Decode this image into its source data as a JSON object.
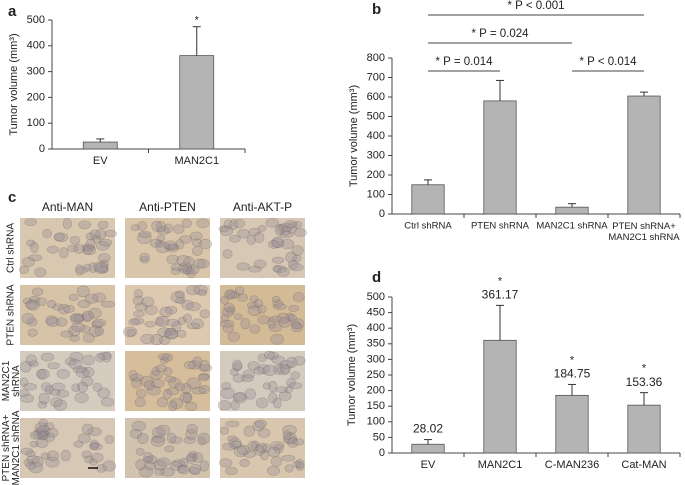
{
  "chart_data": [
    {
      "type": "bar",
      "panel": "a",
      "ylabel": "Tumor volume (mm³)",
      "categories": [
        "EV",
        "MAN2C1"
      ],
      "values": [
        27,
        362
      ],
      "errors": [
        12,
        112
      ],
      "markers": [
        null,
        "*"
      ],
      "color": "#b4b4b4",
      "ylim": [
        0,
        500
      ],
      "yticks": [
        0,
        100,
        200,
        300,
        400,
        500
      ]
    },
    {
      "type": "bar",
      "panel": "b",
      "ylabel": "Tumor volume (mm³)",
      "categories": [
        "Ctrl shRNA",
        "PTEN shRNA",
        "MAN2C1 shRNA",
        "PTEN shRNA+ MAN2C1 shRNA"
      ],
      "values": [
        150,
        580,
        35,
        605
      ],
      "errors": [
        25,
        105,
        18,
        20
      ],
      "color": "#b4b4b4",
      "ylim": [
        0,
        800
      ],
      "yticks": [
        0,
        100,
        200,
        300,
        400,
        500,
        600,
        700,
        800
      ],
      "comparisons": [
        {
          "label": "* P = 0.014",
          "from": 0,
          "to": 1
        },
        {
          "label": "* P < 0.014",
          "from": 2,
          "to": 3
        },
        {
          "label": "* P = 0.024",
          "from": 0,
          "to": 2
        },
        {
          "label": "* P < 0.001",
          "from": 0,
          "to": 3
        }
      ]
    },
    {
      "type": "bar",
      "panel": "d",
      "ylabel": "Tumor volume (mm³)",
      "categories": [
        "EV",
        "MAN2C1",
        "C-MAN236",
        "Cat-MAN"
      ],
      "values": [
        28.02,
        361.17,
        184.75,
        153.36
      ],
      "value_labels": [
        "28.02",
        "361.17",
        "184.75",
        "153.36"
      ],
      "errors": [
        15,
        112,
        35,
        40
      ],
      "markers": [
        null,
        "*",
        "*",
        "*"
      ],
      "color": "#b4b4b4",
      "ylim": [
        0,
        500
      ],
      "yticks": [
        0,
        50,
        100,
        150,
        200,
        250,
        300,
        350,
        400,
        450,
        500
      ]
    }
  ],
  "panel_c": {
    "label": "c",
    "columns": [
      "Anti-MAN",
      "Anti-PTEN",
      "Anti-AKT-P"
    ],
    "rows": [
      "Ctrl shRNA",
      "PTEN shRNA",
      "MAN2C1 shRNA",
      "PTEN shRNA+ MAN2C1 shRNA"
    ]
  }
}
